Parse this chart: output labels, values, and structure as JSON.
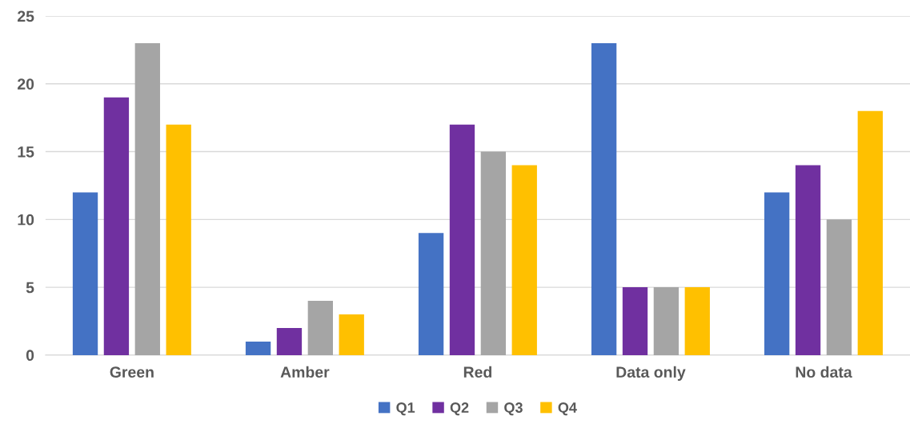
{
  "chart_data": {
    "type": "bar",
    "categories": [
      "Green",
      "Amber",
      "Red",
      "Data only",
      "No data"
    ],
    "series": [
      {
        "name": "Q1",
        "color": "#4472c4",
        "values": [
          12,
          1,
          9,
          23,
          12
        ]
      },
      {
        "name": "Q2",
        "color": "#7030a0",
        "values": [
          19,
          2,
          17,
          5,
          14
        ]
      },
      {
        "name": "Q3",
        "color": "#a5a5a5",
        "values": [
          23,
          4,
          15,
          5,
          10
        ]
      },
      {
        "name": "Q4",
        "color": "#ffc000",
        "values": [
          17,
          3,
          14,
          5,
          18
        ]
      }
    ],
    "ylim": [
      0,
      25
    ],
    "yticks": [
      0,
      5,
      10,
      15,
      20,
      25
    ],
    "grid": "y",
    "legend": "bottom"
  }
}
